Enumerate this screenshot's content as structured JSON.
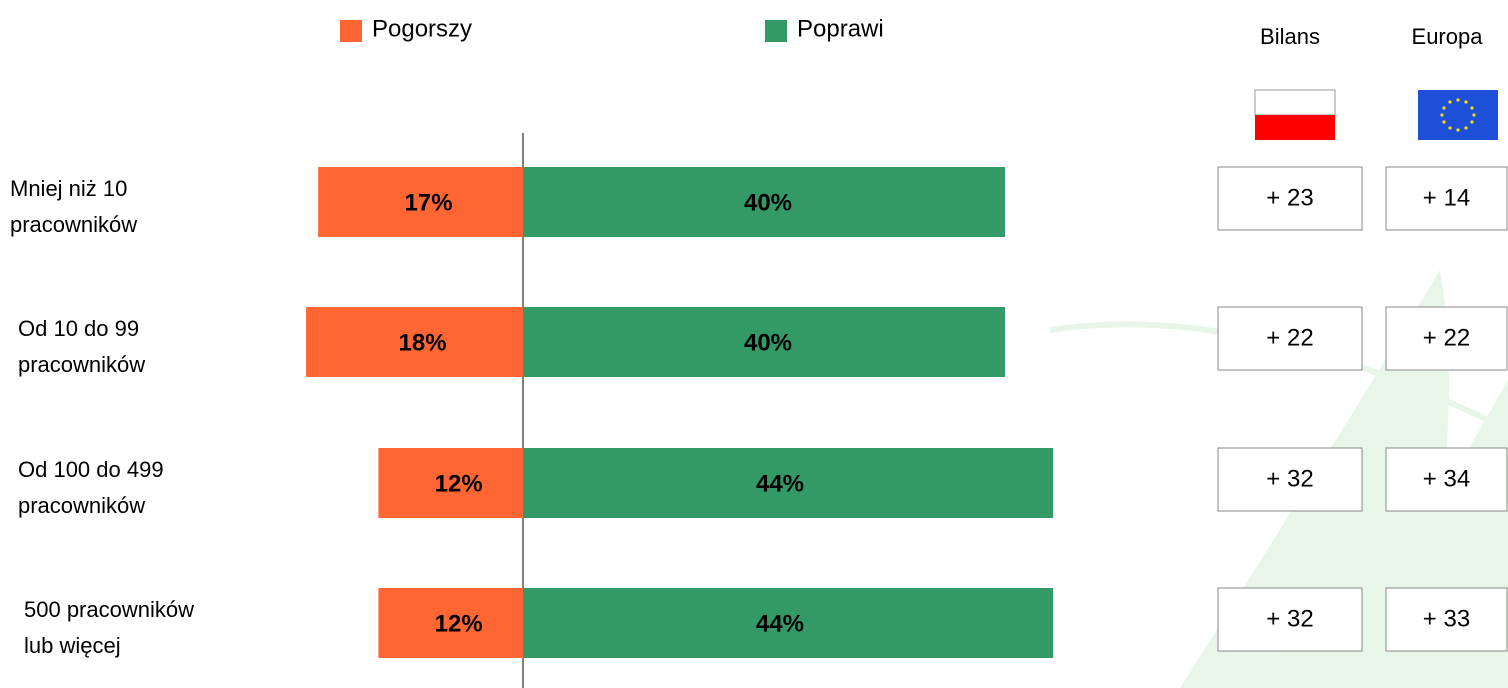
{
  "chart_data": {
    "type": "diverging-bar",
    "categories": [
      [
        "Mniej niż 10",
        "pracowników"
      ],
      [
        "Od 10 do 99",
        "pracowników"
      ],
      [
        "Od 100 do 499",
        "pracowników"
      ],
      [
        "500 pracowników",
        "lub więcej"
      ]
    ],
    "series": [
      {
        "name": "Pogorszy",
        "color": "#ff6633",
        "values": [
          17,
          18,
          12,
          12
        ],
        "value_labels": [
          "17%",
          "18%",
          "12%",
          "12%"
        ]
      },
      {
        "name": "Poprawi",
        "color": "#339966",
        "values": [
          40,
          40,
          44,
          44
        ],
        "value_labels": [
          "40%",
          "40%",
          "44%",
          "44%"
        ]
      }
    ],
    "columns": [
      {
        "name": "Bilans",
        "values": [
          23,
          22,
          32,
          32
        ],
        "value_labels": [
          "+ 23",
          "+ 22",
          "+ 32",
          "+ 32"
        ]
      },
      {
        "name": "Europa",
        "values": [
          14,
          22,
          34,
          33
        ],
        "value_labels": [
          "+ 14",
          "+ 22",
          "+ 34",
          "+ 33"
        ]
      }
    ]
  }
}
